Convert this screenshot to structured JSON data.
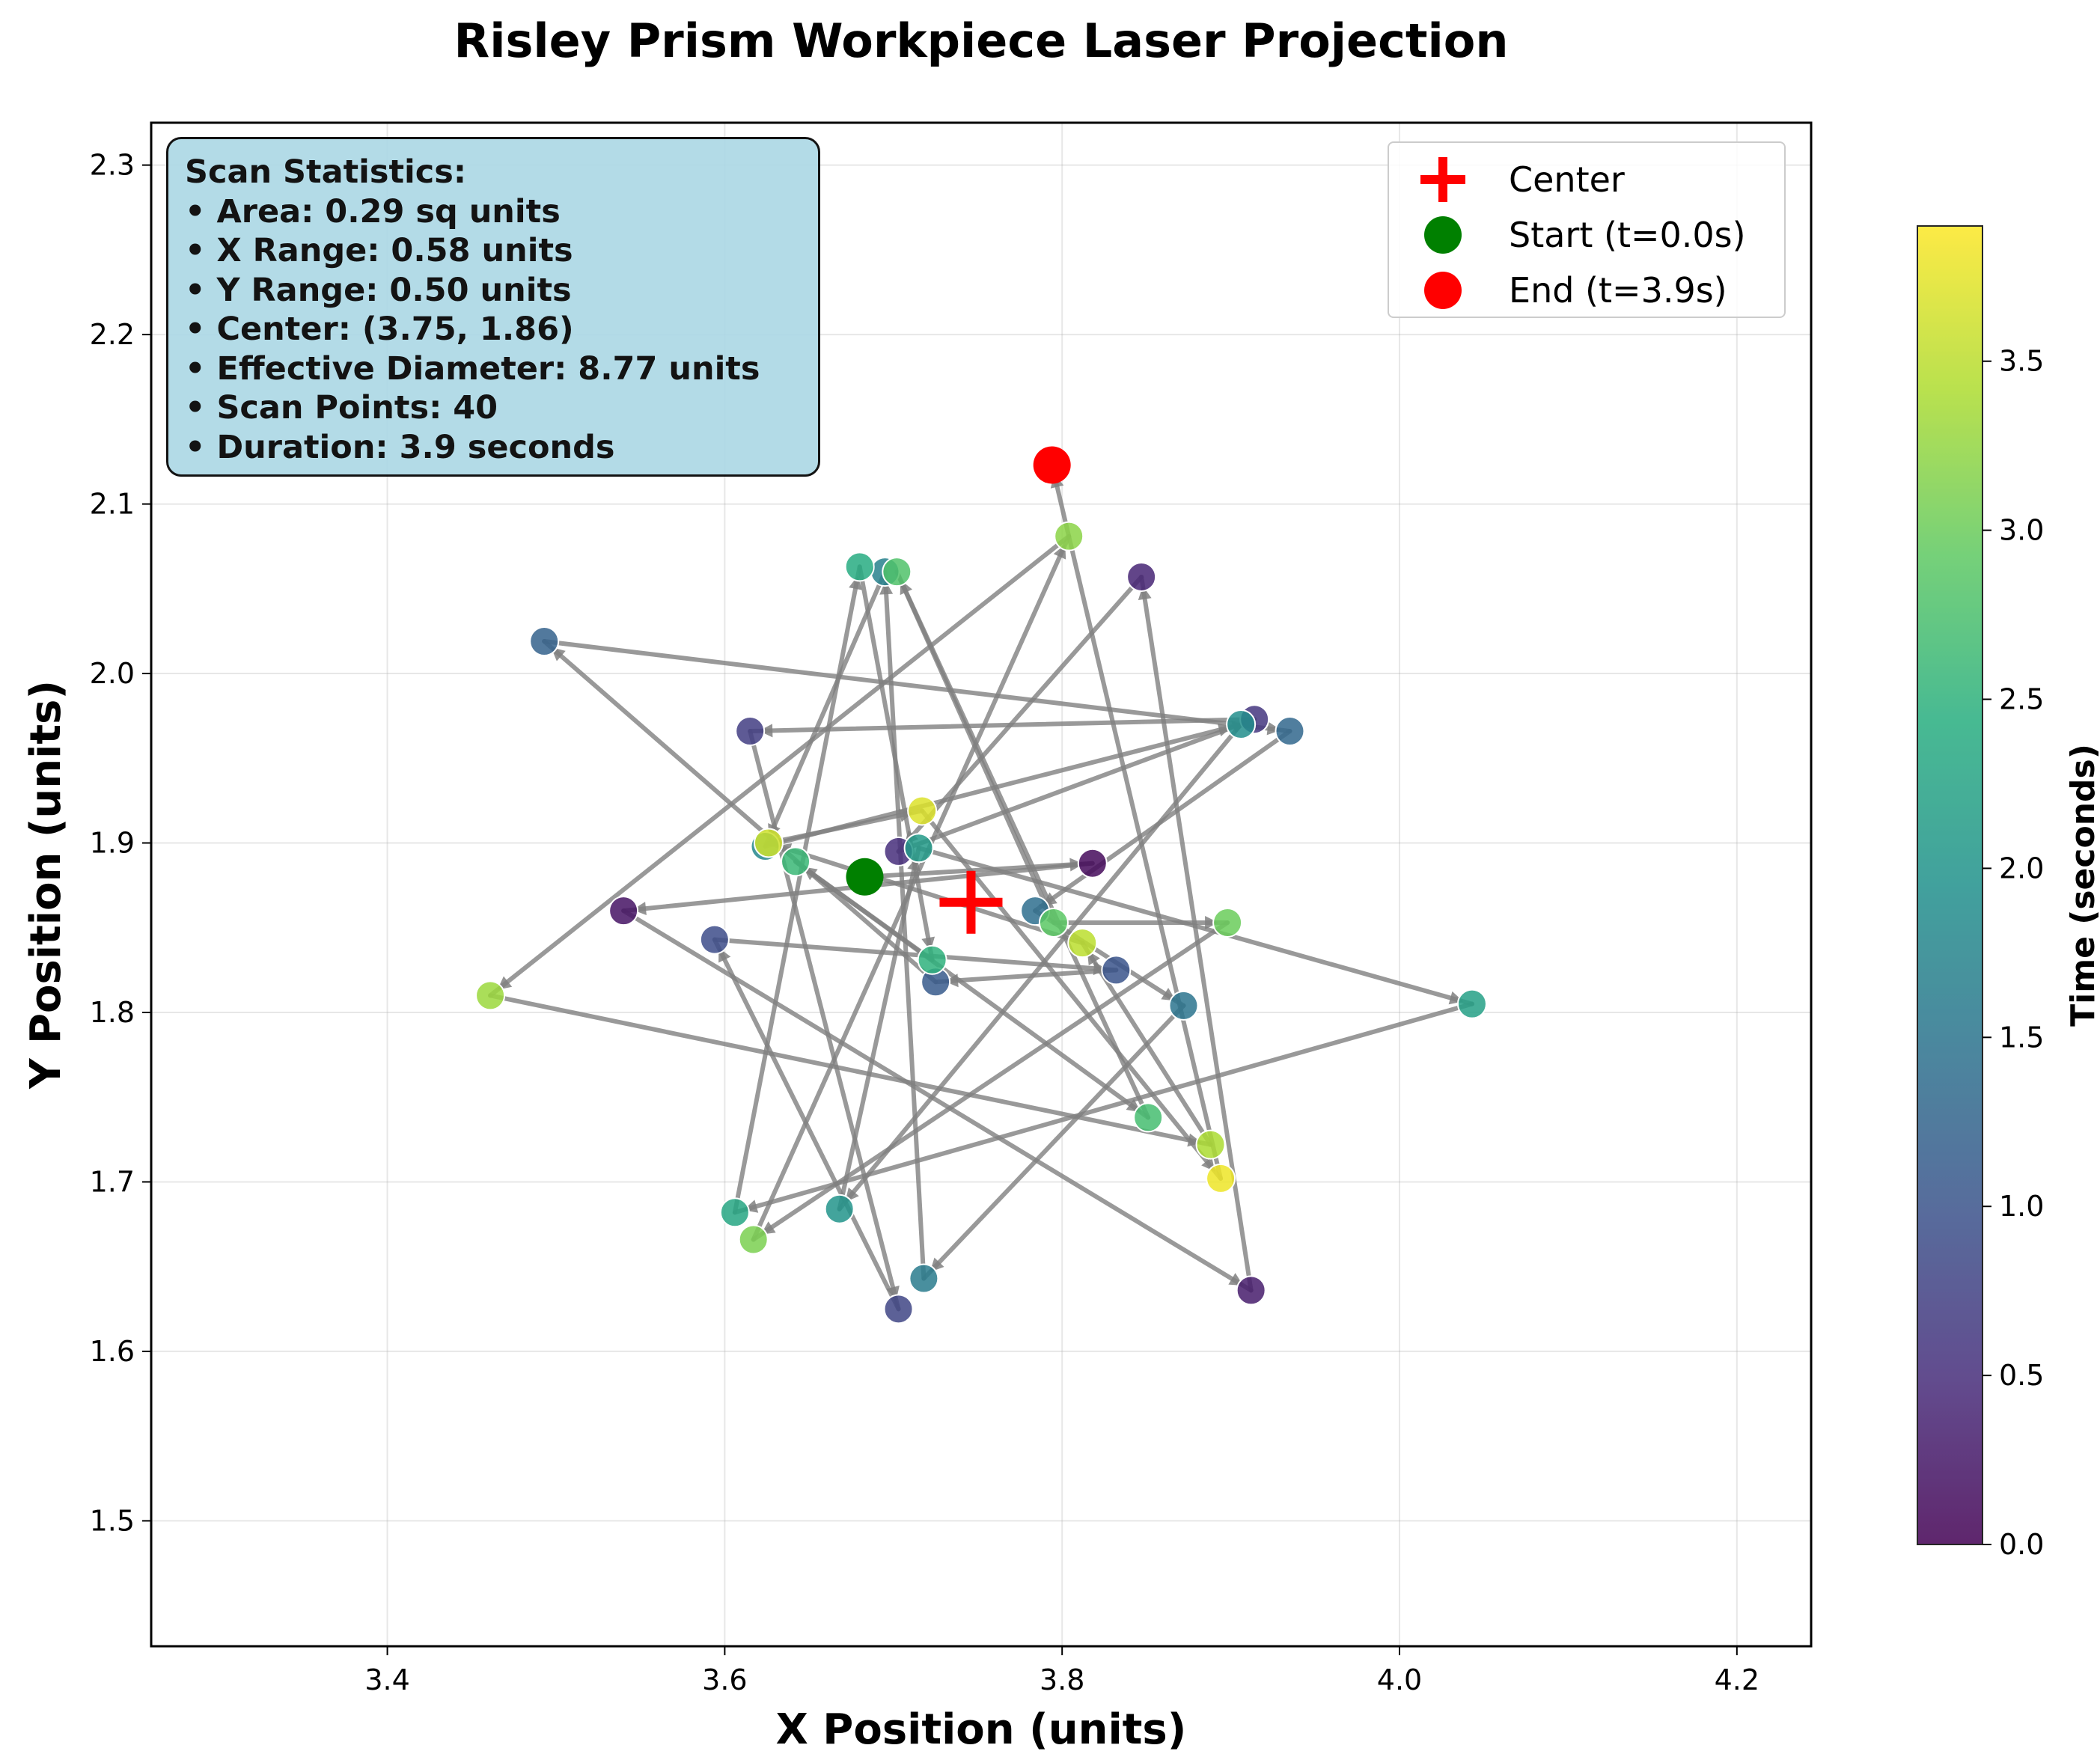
{
  "chart_data": {
    "type": "scatter",
    "title": "Risley Prism Workpiece Laser Projection",
    "xlabel": "X Position (units)",
    "ylabel": "Y Position (units)",
    "xlim": [
      3.26,
      4.244
    ],
    "ylim": [
      1.426,
      2.325
    ],
    "xticks": [
      "3.4",
      "3.6",
      "3.8",
      "4.0",
      "4.2"
    ],
    "yticks": [
      "1.5",
      "1.6",
      "1.7",
      "1.8",
      "1.9",
      "2.0",
      "2.1",
      "2.2",
      "2.3"
    ],
    "grid": true,
    "colormap": "viridis",
    "colorbar": {
      "label": "Time (seconds)",
      "ticks": [
        "0.0",
        "0.5",
        "1.0",
        "1.5",
        "2.0",
        "2.5",
        "3.0",
        "3.5"
      ],
      "range": [
        0.0,
        3.9
      ]
    },
    "path_color": "#808080",
    "points": [
      {
        "t": 0.0,
        "x": 3.683,
        "y": 1.88
      },
      {
        "t": 0.1,
        "x": 3.818,
        "y": 1.888
      },
      {
        "t": 0.2,
        "x": 3.54,
        "y": 1.86
      },
      {
        "t": 0.3,
        "x": 3.912,
        "y": 1.636
      },
      {
        "t": 0.4,
        "x": 3.847,
        "y": 2.057
      },
      {
        "t": 0.5,
        "x": 3.703,
        "y": 1.895
      },
      {
        "t": 0.6,
        "x": 3.914,
        "y": 1.973
      },
      {
        "t": 0.7,
        "x": 3.615,
        "y": 1.966
      },
      {
        "t": 0.8,
        "x": 3.703,
        "y": 1.625
      },
      {
        "t": 0.9,
        "x": 3.594,
        "y": 1.843
      },
      {
        "t": 1.0,
        "x": 3.832,
        "y": 1.825
      },
      {
        "t": 1.1,
        "x": 3.725,
        "y": 1.818
      },
      {
        "t": 1.2,
        "x": 3.493,
        "y": 2.019
      },
      {
        "t": 1.3,
        "x": 3.935,
        "y": 1.966
      },
      {
        "t": 1.4,
        "x": 3.784,
        "y": 1.86
      },
      {
        "t": 1.5,
        "x": 3.872,
        "y": 1.804
      },
      {
        "t": 1.6,
        "x": 3.718,
        "y": 1.643
      },
      {
        "t": 1.7,
        "x": 3.695,
        "y": 2.06
      },
      {
        "t": 1.8,
        "x": 3.624,
        "y": 1.898
      },
      {
        "t": 1.9,
        "x": 3.906,
        "y": 1.97
      },
      {
        "t": 2.0,
        "x": 3.668,
        "y": 1.684
      },
      {
        "t": 2.1,
        "x": 3.715,
        "y": 1.897
      },
      {
        "t": 2.2,
        "x": 4.043,
        "y": 1.805
      },
      {
        "t": 2.3,
        "x": 3.606,
        "y": 1.682
      },
      {
        "t": 2.4,
        "x": 3.68,
        "y": 2.063
      },
      {
        "t": 2.5,
        "x": 3.723,
        "y": 1.831
      },
      {
        "t": 2.6,
        "x": 3.642,
        "y": 1.889
      },
      {
        "t": 2.7,
        "x": 3.851,
        "y": 1.738
      },
      {
        "t": 2.8,
        "x": 3.702,
        "y": 2.06
      },
      {
        "t": 2.9,
        "x": 3.795,
        "y": 1.853
      },
      {
        "t": 3.0,
        "x": 3.898,
        "y": 1.853
      },
      {
        "t": 3.1,
        "x": 3.617,
        "y": 1.666
      },
      {
        "t": 3.2,
        "x": 3.804,
        "y": 2.081
      },
      {
        "t": 3.3,
        "x": 3.461,
        "y": 1.81
      },
      {
        "t": 3.4,
        "x": 3.888,
        "y": 1.722
      },
      {
        "t": 3.5,
        "x": 3.812,
        "y": 1.841
      },
      {
        "t": 3.6,
        "x": 3.626,
        "y": 1.9
      },
      {
        "t": 3.7,
        "x": 3.717,
        "y": 1.919
      },
      {
        "t": 3.8,
        "x": 3.894,
        "y": 1.702
      },
      {
        "t": 3.9,
        "x": 3.794,
        "y": 2.123
      }
    ],
    "center": {
      "x": 3.746,
      "y": 1.865
    },
    "legend_position": "top-right",
    "legend": [
      {
        "label": "Center",
        "marker": "plus",
        "color": "#ff0000"
      },
      {
        "label": "Start (t=0.0s)",
        "marker": "circle",
        "color": "#008000"
      },
      {
        "label": "End (t=3.9s)",
        "marker": "circle",
        "color": "#ff0000"
      }
    ],
    "stats_box": {
      "title": "Scan Statistics:",
      "lines": [
        "• Area: 0.29 sq units",
        "• X Range: 0.58 units",
        "• Y Range: 0.50 units",
        "• Center: (3.75, 1.86)",
        "• Effective Diameter: 8.77 units",
        "• Scan Points: 40",
        "• Duration: 3.9 seconds"
      ]
    }
  }
}
